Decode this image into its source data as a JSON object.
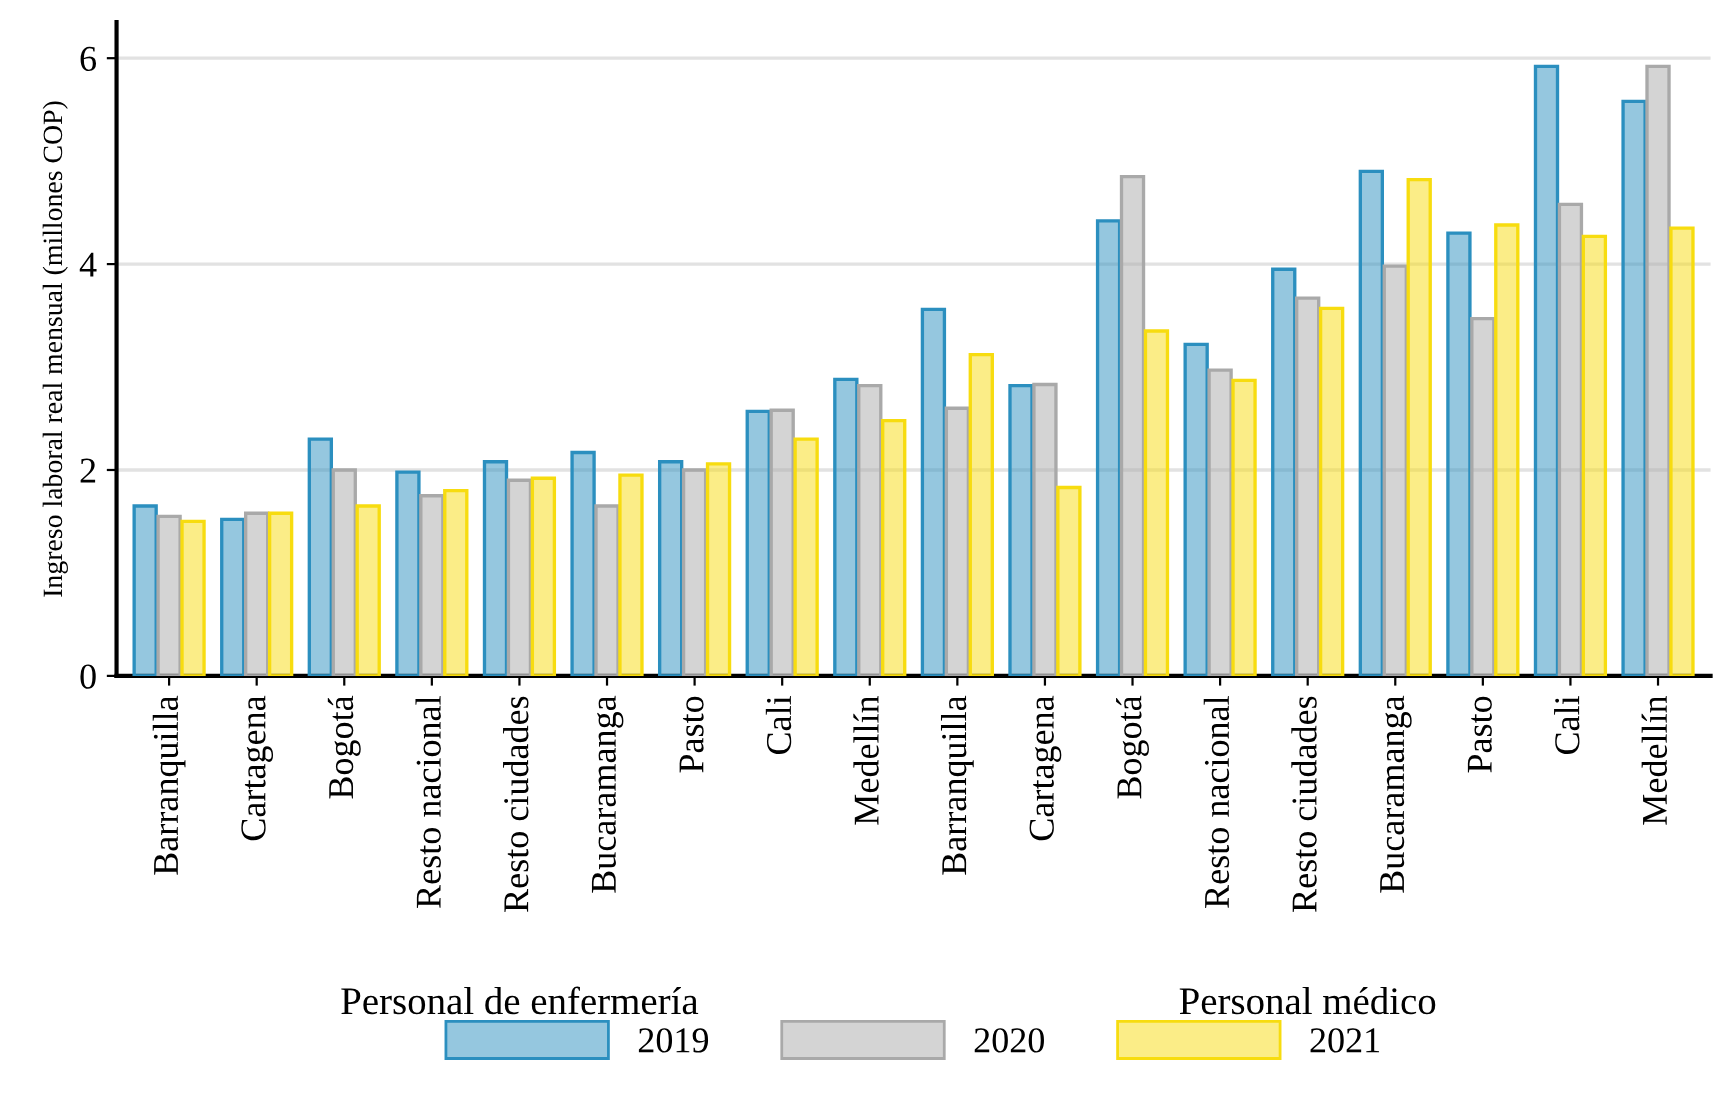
{
  "chart_data": {
    "type": "bar",
    "ylabel": "Ingreso laboral real mensual (millones COP)",
    "categories": [
      "Barranquilla",
      "Cartagena",
      "Bogotá",
      "Resto nacional",
      "Resto ciudades",
      "Bucaramanga",
      "Pasto",
      "Cali",
      "Medellín",
      "Barranquilla",
      "Cartagena",
      "Bogotá",
      "Resto nacional",
      "Resto ciudades",
      "Bucaramanga",
      "Pasto",
      "Cali",
      "Medellín"
    ],
    "series": [
      {
        "name": "2019",
        "color": "#2b8fbf",
        "values": [
          1.65,
          1.52,
          2.3,
          1.98,
          2.08,
          2.17,
          2.08,
          2.57,
          2.88,
          3.56,
          2.82,
          4.42,
          3.22,
          3.95,
          4.9,
          4.3,
          5.92,
          5.58
        ]
      },
      {
        "name": "2020",
        "color": "#a9a9a9",
        "values": [
          1.55,
          1.58,
          2.0,
          1.75,
          1.9,
          1.65,
          2.0,
          2.58,
          2.82,
          2.6,
          2.83,
          4.85,
          2.97,
          3.67,
          3.98,
          3.47,
          4.58,
          5.92
        ]
      },
      {
        "name": "2021",
        "color": "#f7dc0f",
        "values": [
          1.5,
          1.58,
          1.65,
          1.8,
          1.92,
          1.95,
          2.06,
          2.3,
          2.48,
          3.12,
          1.83,
          3.35,
          2.87,
          3.57,
          4.82,
          4.38,
          4.27,
          4.35
        ]
      }
    ],
    "annotations": [
      "Personal de enfermería",
      "Personal médico"
    ],
    "ylim": [
      0,
      6.35
    ],
    "yticks": [
      0,
      2,
      4,
      6
    ],
    "grid": "y",
    "legend": "bottom"
  }
}
